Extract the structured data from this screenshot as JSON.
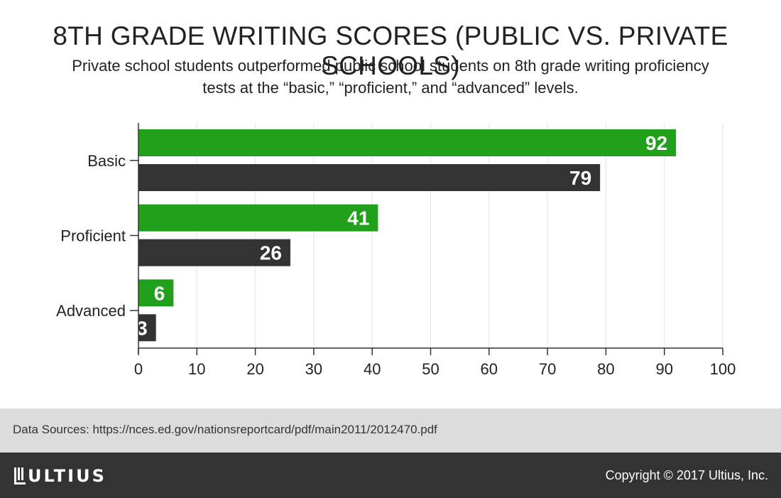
{
  "header": {
    "title": "8TH GRADE WRITING SCORES (PUBLIC VS. PRIVATE SCHOOLS)",
    "subtitle_line1": "Private school students outperformed public school students on 8th grade writing proficiency",
    "subtitle_line2": "tests at the “basic,” “proficient,” and “advanced” levels."
  },
  "chart_data": {
    "type": "bar",
    "orientation": "horizontal",
    "categories": [
      "Basic",
      "Proficient",
      "Advanced"
    ],
    "series": [
      {
        "color": "#21a01b",
        "values": [
          92,
          41,
          6
        ]
      },
      {
        "color": "#333333",
        "values": [
          79,
          26,
          3
        ]
      }
    ],
    "xlim": [
      0,
      100
    ],
    "xticks": [
      0,
      10,
      20,
      30,
      40,
      50,
      60,
      70,
      80,
      90,
      100
    ],
    "grid": true,
    "data_labels": true
  },
  "source": {
    "text": "Data Sources: https://nces.ed.gov/nationsreportcard/pdf/main2011/2012470.pdf"
  },
  "footer": {
    "logo_text": "ULTIUS",
    "copyright": "Copyright © 2017 Ultius, Inc."
  }
}
